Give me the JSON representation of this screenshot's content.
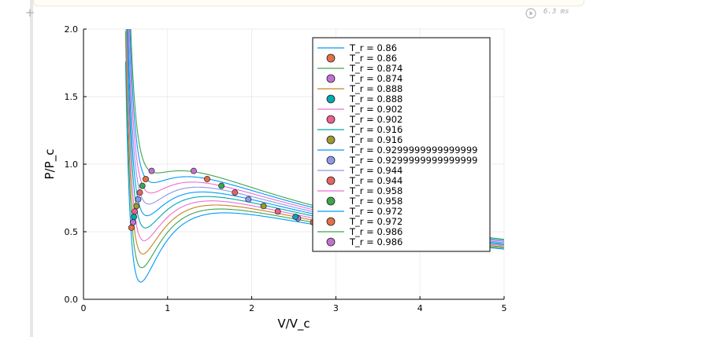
{
  "notebook": {
    "runtime": "6.3 ms",
    "add_cell_icon": "plus-icon",
    "run_icon": "play-circle-icon"
  },
  "chart_data": {
    "type": "line",
    "title": "",
    "xlabel": "V/V_c",
    "ylabel": "P/P_c",
    "xlim": [
      0,
      5
    ],
    "ylim": [
      0,
      2
    ],
    "xticks": [
      "0",
      "1",
      "2",
      "3",
      "4",
      "5"
    ],
    "yticks": [
      "0.0",
      "0.5",
      "1.0",
      "1.5",
      "2.0"
    ],
    "grid": true,
    "legend_position": "top-right",
    "legend": [
      "T_r = 0.86",
      "T_r = 0.86",
      "T_r = 0.874",
      "T_r = 0.874",
      "T_r = 0.888",
      "T_r = 0.888",
      "T_r = 0.902",
      "T_r = 0.902",
      "T_r = 0.916",
      "T_r = 0.916",
      "T_r = 0.9299999999999999",
      "T_r = 0.9299999999999999",
      "T_r = 0.944",
      "T_r = 0.944",
      "T_r = 0.958",
      "T_r = 0.958",
      "T_r = 0.972",
      "T_r = 0.972",
      "T_r = 0.986",
      "T_r = 0.986"
    ],
    "series": [
      {
        "Tr": 0.86,
        "line_color": "#009AFA",
        "marker_color": "#E36F47",
        "points": [
          [
            0.57,
            0.53
          ],
          [
            2.73,
            0.57
          ]
        ]
      },
      {
        "Tr": 0.874,
        "line_color": "#3EA44E",
        "marker_color": "#C270D1",
        "points": [
          [
            0.59,
            0.57
          ],
          [
            2.55,
            0.6
          ]
        ]
      },
      {
        "Tr": 0.888,
        "line_color": "#C68225",
        "marker_color": "#00A9AD",
        "points": [
          [
            0.6,
            0.61
          ],
          [
            2.52,
            0.61
          ]
        ]
      },
      {
        "Tr": 0.902,
        "line_color": "#EB6FD3",
        "marker_color": "#ED5E93",
        "points": [
          [
            0.61,
            0.65
          ],
          [
            2.31,
            0.65
          ]
        ]
      },
      {
        "Tr": 0.916,
        "line_color": "#00A9AD",
        "marker_color": "#9B9A2D",
        "points": [
          [
            0.63,
            0.69
          ],
          [
            2.14,
            0.69
          ]
        ]
      },
      {
        "Tr": 0.93,
        "line_color": "#009AFA",
        "marker_color": "#8E97E9",
        "points": [
          [
            0.65,
            0.74
          ],
          [
            1.96,
            0.74
          ]
        ]
      },
      {
        "Tr": 0.944,
        "line_color": "#8E97E9",
        "marker_color": "#E76262",
        "points": [
          [
            0.67,
            0.79
          ],
          [
            1.8,
            0.79
          ]
        ]
      },
      {
        "Tr": 0.958,
        "line_color": "#EB6FD3",
        "marker_color": "#3EA44E",
        "points": [
          [
            0.7,
            0.84
          ],
          [
            1.64,
            0.84
          ]
        ]
      },
      {
        "Tr": 0.972,
        "line_color": "#009AFA",
        "marker_color": "#E36F47",
        "points": [
          [
            0.74,
            0.89
          ],
          [
            1.47,
            0.89
          ]
        ]
      },
      {
        "Tr": 0.986,
        "line_color": "#3EA44E",
        "marker_color": "#C270D1",
        "points": [
          [
            0.81,
            0.95
          ],
          [
            1.31,
            0.95
          ]
        ]
      }
    ]
  }
}
